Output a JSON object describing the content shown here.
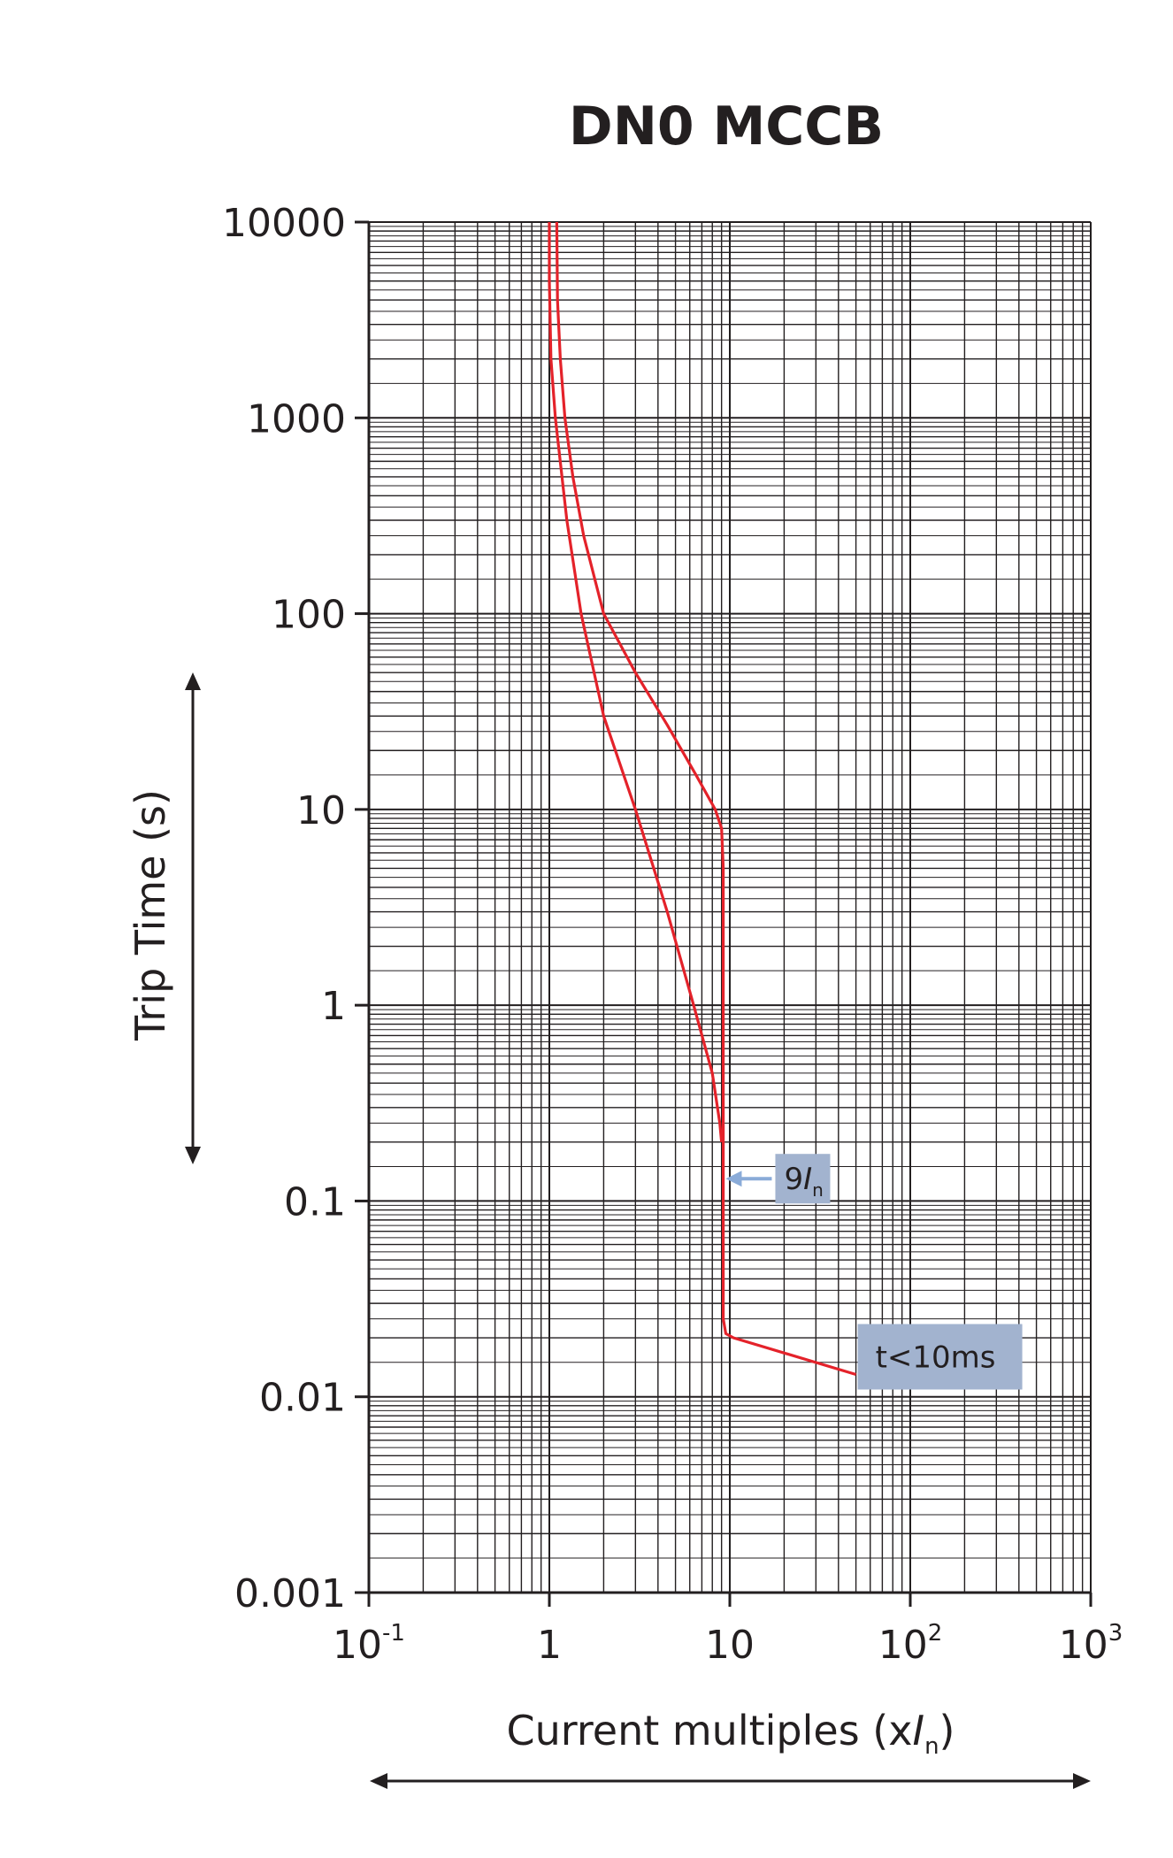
{
  "chart_data": {
    "type": "line",
    "title": "DN0 MCCB",
    "xlabel": {
      "text": "Current multiples (x",
      "italic": "I",
      "sub": "n",
      "close": ")"
    },
    "ylabel": "Trip Time (s)",
    "x_scale": "log",
    "y_scale": "log",
    "xlim": [
      0.1,
      1000
    ],
    "ylim": [
      0.001,
      10000
    ],
    "grid": true,
    "x_ticks": [
      {
        "value": 0.1,
        "base": "10",
        "exp": "-1"
      },
      {
        "value": 1,
        "base": "1",
        "exp": ""
      },
      {
        "value": 10,
        "base": "10",
        "exp": ""
      },
      {
        "value": 100,
        "base": "10",
        "exp": "2"
      },
      {
        "value": 1000,
        "base": "10",
        "exp": "3"
      }
    ],
    "y_ticks": [
      {
        "value": 10000,
        "label": "10000"
      },
      {
        "value": 1000,
        "label": "1000"
      },
      {
        "value": 100,
        "label": "100"
      },
      {
        "value": 10,
        "label": "10"
      },
      {
        "value": 1,
        "label": "1"
      },
      {
        "value": 0.1,
        "label": "0.1"
      },
      {
        "value": 0.01,
        "label": "0.01"
      },
      {
        "value": 0.001,
        "label": "0.001"
      }
    ],
    "series": [
      {
        "color": "#e4222a",
        "points": [
          [
            1.1,
            10000
          ],
          [
            1.11,
            4000
          ],
          [
            1.15,
            2000
          ],
          [
            1.22,
            1000
          ],
          [
            1.35,
            500
          ],
          [
            1.55,
            250
          ],
          [
            2.0,
            100
          ],
          [
            3.0,
            50
          ],
          [
            4.5,
            27
          ],
          [
            6.5,
            15
          ],
          [
            8.3,
            10
          ],
          [
            9.0,
            8
          ],
          [
            9.2,
            5
          ],
          [
            9.2,
            0.13
          ],
          [
            9.2,
            0.05
          ],
          [
            9.2,
            0.025
          ],
          [
            9.5,
            0.021
          ],
          [
            10.5,
            0.02
          ],
          [
            50,
            0.013
          ]
        ]
      },
      {
        "color": "#e4222a",
        "points": [
          [
            1.0,
            10000
          ],
          [
            1.0,
            5000
          ],
          [
            1.02,
            2000
          ],
          [
            1.08,
            1000
          ],
          [
            1.25,
            300
          ],
          [
            1.5,
            100
          ],
          [
            2.0,
            30
          ],
          [
            3.0,
            10
          ],
          [
            4.5,
            3
          ],
          [
            6.3,
            1
          ],
          [
            8.0,
            0.45
          ],
          [
            8.8,
            0.25
          ],
          [
            9.0,
            0.2
          ]
        ]
      }
    ],
    "annotations": [
      {
        "text": "9",
        "italic": "I",
        "sub": "n",
        "x": 9.5,
        "y": 0.13,
        "box_color": "#a2b3cf",
        "arrow_color": "#8aabd8"
      },
      {
        "text": "t<10ms",
        "x": 50,
        "y": 0.013,
        "box_color": "#a2b3cf"
      }
    ],
    "range_arrows": [
      "vertical-left",
      "horizontal-bottom"
    ]
  }
}
